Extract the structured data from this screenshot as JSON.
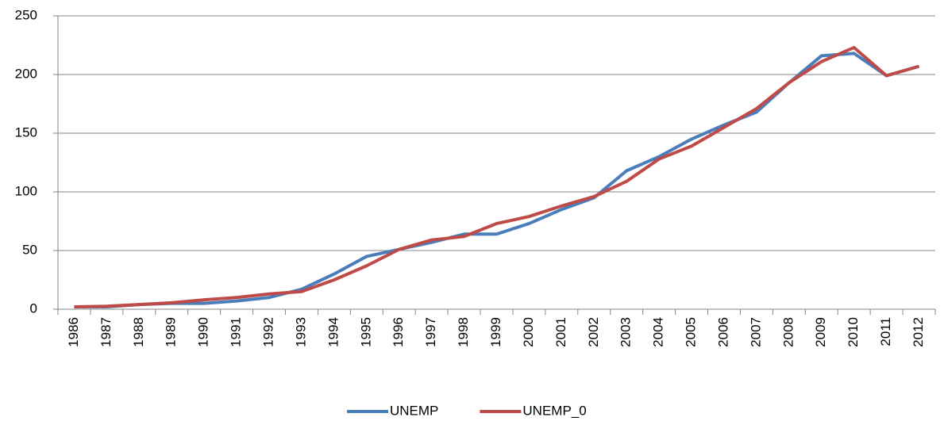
{
  "chart_data": {
    "type": "line",
    "categories": [
      "1986",
      "1987",
      "1988",
      "1989",
      "1990",
      "1991",
      "1992",
      "1993",
      "1994",
      "1995",
      "1996",
      "1997",
      "1998",
      "1999",
      "2000",
      "2001",
      "2002",
      "2003",
      "2004",
      "2005",
      "2006",
      "2007",
      "2008",
      "2009",
      "2010",
      "2011",
      "2012"
    ],
    "series": [
      {
        "name": "UNEMP",
        "color": "#4a7ebb",
        "values": [
          2,
          2,
          4,
          5,
          5,
          7,
          10,
          17,
          30,
          45,
          51,
          57,
          64,
          64,
          73,
          85,
          95,
          118,
          130,
          145,
          157,
          168,
          193,
          216,
          218,
          199,
          207
        ]
      },
      {
        "name": "UNEMP_0",
        "color": "#be4b48",
        "values": [
          2,
          2.5,
          4,
          5.5,
          8,
          10,
          13,
          15,
          25,
          37,
          51,
          59,
          62,
          73,
          79,
          88,
          96,
          109,
          128,
          139,
          155,
          171,
          193,
          211,
          223,
          199,
          207
        ]
      }
    ],
    "ylim": [
      0,
      250
    ],
    "yticks": [
      0,
      50,
      100,
      150,
      200,
      250
    ],
    "grid": true
  }
}
